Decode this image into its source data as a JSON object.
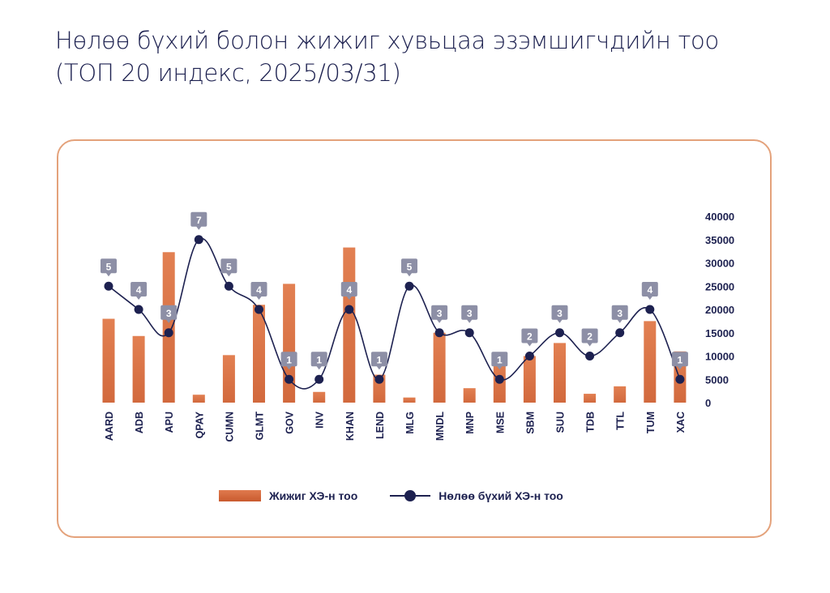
{
  "title": {
    "line1": "Нөлөө бүхий болон жижиг хувьцаа эзэмшигчдийн тоо",
    "line2": "(ТОП 20 индекс, 2025/03/31)"
  },
  "colors": {
    "bar": "#d2693d",
    "line": "#1d2150",
    "badge": "#8d8fa6",
    "badge_text": "#ffffff",
    "axis_text": "#1d2150",
    "card_border": "#e4a27b"
  },
  "legend": {
    "bar_label": "Жижиг ХЭ-н тоо",
    "line_label": "Нөлөө бүхий ХЭ-н тоо",
    "position": "bottom"
  },
  "chart_data": {
    "type": "bar+line",
    "categories": [
      "AARD",
      "ADB",
      "APU",
      "QPAY",
      "CUMN",
      "GLMT",
      "GOV",
      "INV",
      "KHAN",
      "LEND",
      "MLG",
      "MNDL",
      "MNP",
      "MSE",
      "SBM",
      "SUU",
      "TDB",
      "TTL",
      "TUM",
      "XAC"
    ],
    "series": [
      {
        "name": "Жижиг ХЭ-н тоо",
        "type": "bar",
        "axis": "right",
        "values": [
          18000,
          14300,
          32300,
          1700,
          10200,
          21000,
          25500,
          2300,
          33300,
          6000,
          1100,
          15000,
          3100,
          9300,
          10000,
          12800,
          1900,
          3500,
          17500,
          11000
        ]
      },
      {
        "name": "Нөлөө бүхий ХЭ-н тоо",
        "type": "line",
        "axis": "left",
        "values": [
          5,
          4,
          3,
          7,
          5,
          4,
          1,
          1,
          4,
          1,
          5,
          3,
          3,
          1,
          2,
          3,
          2,
          3,
          4,
          1
        ],
        "labels": [
          "5",
          "4",
          "3",
          "7",
          "5",
          "4",
          "1",
          "1",
          "4",
          "1",
          "5",
          "3",
          "3",
          "1",
          "2",
          "3",
          "2",
          "3",
          "4",
          "1"
        ]
      }
    ],
    "y_right": {
      "ticks": [
        0,
        5000,
        10000,
        15000,
        20000,
        25000,
        30000,
        35000,
        40000
      ],
      "tick_labels": [
        "0",
        "5000",
        "10000",
        "15000",
        "20000",
        "25000",
        "30000",
        "35000",
        "40000"
      ],
      "range": [
        0,
        40000
      ]
    },
    "y_left": {
      "range": [
        0,
        8
      ],
      "shown": false
    },
    "grid": false
  }
}
